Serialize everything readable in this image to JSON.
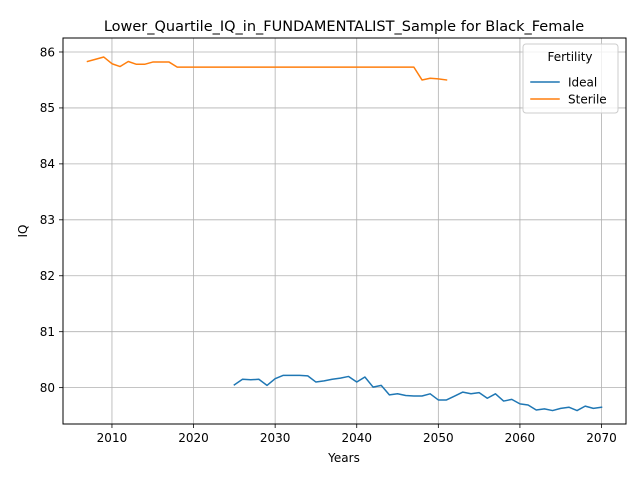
{
  "chart_data": {
    "type": "line",
    "title": "Lower_Quartile_IQ_in_FUNDAMENTALIST_Sample for Black_Female",
    "xlabel": "Years",
    "ylabel": "IQ",
    "xlim": [
      2004,
      2073
    ],
    "ylim": [
      79.35,
      86.25
    ],
    "xticks": [
      2010,
      2020,
      2030,
      2040,
      2050,
      2060,
      2070
    ],
    "yticks": [
      80,
      81,
      82,
      83,
      84,
      85,
      86
    ],
    "grid": true,
    "legend": {
      "title": "Fertility",
      "position": "top-right"
    },
    "series": [
      {
        "name": "Ideal",
        "color": "#1f77b4",
        "x": [
          2025,
          2026,
          2027,
          2028,
          2029,
          2030,
          2031,
          2032,
          2033,
          2034,
          2035,
          2036,
          2037,
          2038,
          2039,
          2040,
          2041,
          2042,
          2043,
          2044,
          2045,
          2046,
          2047,
          2048,
          2049,
          2050,
          2051,
          2052,
          2053,
          2054,
          2055,
          2056,
          2057,
          2058,
          2059,
          2060,
          2061,
          2062,
          2063,
          2064,
          2065,
          2066,
          2067,
          2068,
          2069,
          2070
        ],
        "y": [
          80.05,
          80.15,
          80.14,
          80.15,
          80.04,
          80.16,
          80.22,
          80.22,
          80.22,
          80.21,
          80.1,
          80.12,
          80.15,
          80.17,
          80.2,
          80.1,
          80.19,
          80.01,
          80.04,
          79.87,
          79.89,
          79.86,
          79.85,
          79.85,
          79.89,
          79.78,
          79.78,
          79.85,
          79.92,
          79.89,
          79.91,
          79.81,
          79.89,
          79.76,
          79.79,
          79.71,
          79.69,
          79.6,
          79.62,
          79.59,
          79.63,
          79.65,
          79.59,
          79.67,
          79.63,
          79.65
        ]
      },
      {
        "name": "Sterile",
        "color": "#ff7f0e",
        "x": [
          2007,
          2008,
          2009,
          2010,
          2011,
          2012,
          2013,
          2014,
          2015,
          2016,
          2017,
          2018,
          2019,
          2020,
          2021,
          2022,
          2023,
          2024,
          2025,
          2026,
          2027,
          2028,
          2029,
          2030,
          2031,
          2032,
          2033,
          2034,
          2035,
          2036,
          2037,
          2038,
          2039,
          2040,
          2041,
          2042,
          2043,
          2044,
          2045,
          2046,
          2047,
          2048,
          2049,
          2050,
          2051
        ],
        "y": [
          85.83,
          85.87,
          85.91,
          85.79,
          85.74,
          85.83,
          85.78,
          85.78,
          85.82,
          85.82,
          85.82,
          85.73,
          85.73,
          85.73,
          85.73,
          85.73,
          85.73,
          85.73,
          85.73,
          85.73,
          85.73,
          85.73,
          85.73,
          85.73,
          85.73,
          85.73,
          85.73,
          85.73,
          85.73,
          85.73,
          85.73,
          85.73,
          85.73,
          85.73,
          85.73,
          85.73,
          85.73,
          85.73,
          85.73,
          85.73,
          85.73,
          85.5,
          85.53,
          85.52,
          85.5
        ]
      }
    ]
  }
}
